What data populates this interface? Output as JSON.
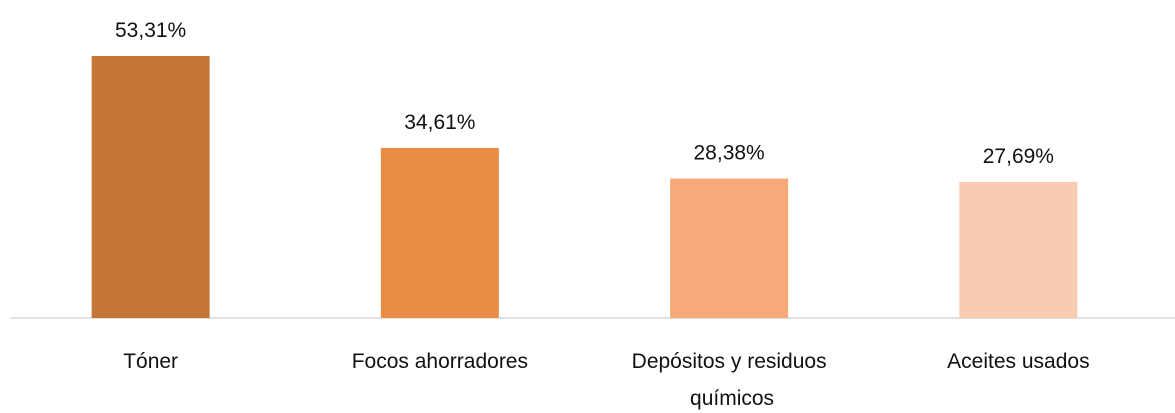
{
  "chart_data": {
    "type": "bar",
    "categories": [
      "Tóner",
      "Focos ahorradores",
      "Depósitos y residuos químicos",
      "Aceites usados"
    ],
    "values": [
      53.31,
      34.61,
      28.38,
      27.69
    ],
    "value_labels": [
      "53,31%",
      "34,61%",
      "28,38%",
      "27,69%"
    ],
    "colors": [
      "#c47735",
      "#e88d43",
      "#f6aa7a",
      "#f9cbb1"
    ]
  }
}
